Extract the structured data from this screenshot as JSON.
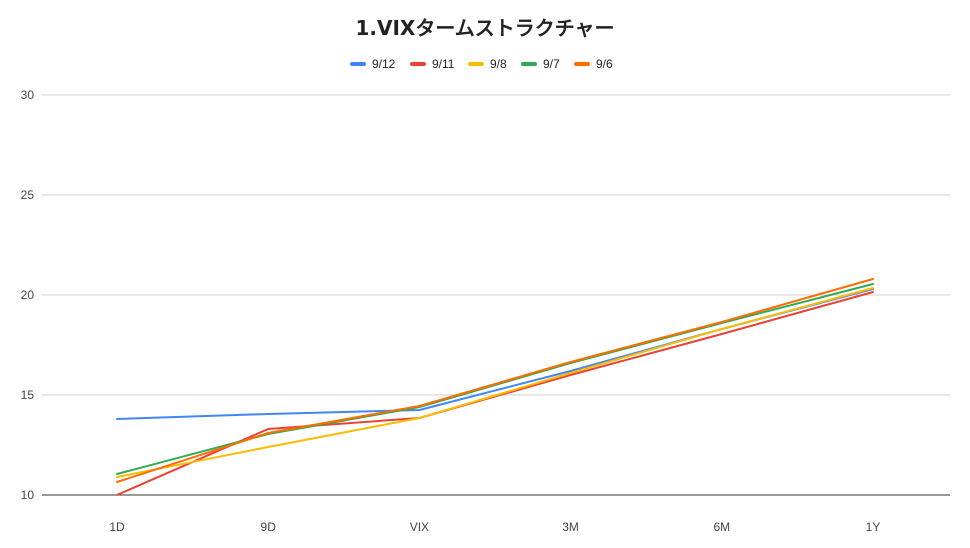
{
  "chart_data": {
    "type": "line",
    "title": "1.VIXタームストラクチャー",
    "xlabel": "",
    "ylabel": "",
    "categories": [
      "1D",
      "9D",
      "VIX",
      "3M",
      "6M",
      "1Y"
    ],
    "ylim": [
      10,
      30
    ],
    "yticks": [
      10,
      15,
      20,
      25,
      30
    ],
    "grid": true,
    "legend_position": "top",
    "series": [
      {
        "name": "9/12",
        "color": "#4285f4",
        "values": [
          13.8,
          14.05,
          14.25,
          16.2,
          18.3,
          20.3
        ]
      },
      {
        "name": "9/11",
        "color": "#ea4335",
        "values": [
          10.0,
          13.3,
          13.85,
          16.0,
          18.05,
          20.15
        ]
      },
      {
        "name": "9/8",
        "color": "#fbbc04",
        "values": [
          10.9,
          12.4,
          13.85,
          16.1,
          18.3,
          20.35
        ]
      },
      {
        "name": "9/7",
        "color": "#34a853",
        "values": [
          11.05,
          13.05,
          14.4,
          16.6,
          18.6,
          20.55
        ]
      },
      {
        "name": "9/6",
        "color": "#ff6d01",
        "values": [
          10.65,
          13.1,
          14.45,
          16.65,
          18.65,
          20.8
        ]
      }
    ]
  }
}
